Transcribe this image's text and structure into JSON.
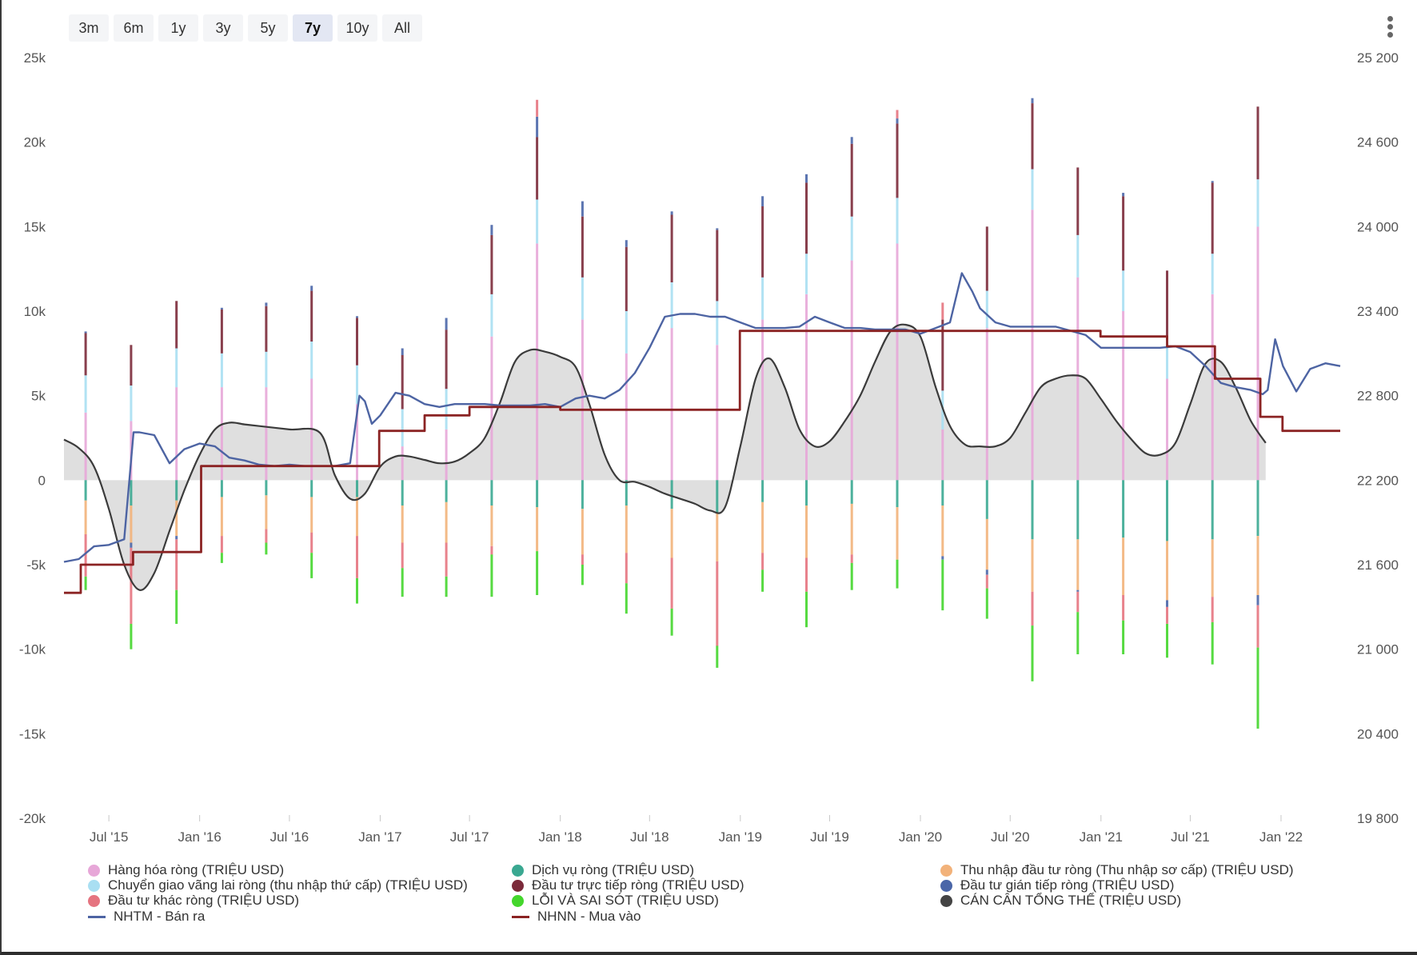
{
  "range_selector": {
    "buttons": [
      "3m",
      "6m",
      "1y",
      "3y",
      "5y",
      "7y",
      "10y",
      "All"
    ],
    "selected": "7y"
  },
  "menu": {
    "icon": "kebab-menu-icon"
  },
  "chart_data": {
    "type": "bar",
    "x_axis": {
      "ticks": [
        "Jul '15",
        "Jan '16",
        "Jul '16",
        "Jan '17",
        "Jul '17",
        "Jan '18",
        "Jul '18",
        "Jan '19",
        "Jul '19",
        "Jan '20",
        "Jul '20",
        "Jan '21",
        "Jul '21",
        "Jan '22"
      ]
    },
    "y_left": {
      "ticks": [
        "25k",
        "20k",
        "15k",
        "10k",
        "5k",
        "0",
        "-5k",
        "-10k",
        "-15k",
        "-20k"
      ],
      "range": [
        -20000,
        25000
      ]
    },
    "y_right": {
      "ticks": [
        "25 200",
        "24 600",
        "24 000",
        "23 400",
        "22 800",
        "22 200",
        "21 600",
        "21 000",
        "20 400",
        "19 800"
      ],
      "range": [
        19800,
        25200
      ]
    },
    "quarters": [
      "2015 Q2",
      "2015 Q3",
      "2015 Q4",
      "2016 Q1",
      "2016 Q2",
      "2016 Q3",
      "2016 Q4",
      "2017 Q1",
      "2017 Q2",
      "2017 Q3",
      "2017 Q4",
      "2018 Q1",
      "2018 Q2",
      "2018 Q3",
      "2018 Q4",
      "2019 Q1",
      "2019 Q2",
      "2019 Q3",
      "2019 Q4",
      "2020 Q1",
      "2020 Q2",
      "2020 Q3",
      "2020 Q4",
      "2021 Q1",
      "2021 Q2",
      "2021 Q3",
      "2021 Q4"
    ],
    "quarter_dates": [
      "2015-05-15",
      "2015-08-15",
      "2015-11-15",
      "2016-02-15",
      "2016-05-15",
      "2016-08-15",
      "2016-11-15",
      "2017-02-15",
      "2017-05-15",
      "2017-08-15",
      "2017-11-15",
      "2018-02-15",
      "2018-05-15",
      "2018-08-15",
      "2018-11-15",
      "2019-02-15",
      "2019-05-15",
      "2019-08-15",
      "2019-11-15",
      "2020-02-15",
      "2020-05-15",
      "2020-08-15",
      "2020-11-15",
      "2021-02-15",
      "2021-05-15",
      "2021-08-15",
      "2021-11-15"
    ],
    "stack_series": [
      {
        "name": "Hàng hóa ròng (TRIỆU USD)",
        "color": "#e7a7d8",
        "axis": "left",
        "values": [
          4000,
          3500,
          5500,
          5500,
          5500,
          6000,
          4500,
          2000,
          3000,
          8500,
          14000,
          9500,
          7500,
          9000,
          8000,
          9500,
          11000,
          13000,
          14000,
          3000,
          9000,
          16000,
          12000,
          10000,
          6000,
          11000,
          15000
        ]
      },
      {
        "name": "Dịch vụ ròng (TRIỆU USD)",
        "color": "#3aa891",
        "axis": "left",
        "values": [
          -1200,
          -1500,
          -1200,
          -1000,
          -900,
          -1000,
          -1000,
          -1500,
          -1300,
          -1500,
          -1600,
          -1700,
          -1500,
          -1700,
          -1900,
          -1300,
          -1500,
          -1400,
          -1600,
          -1500,
          -2300,
          -3500,
          -3500,
          -3400,
          -3600,
          -3500,
          -3300
        ]
      },
      {
        "name": "Thu nhập đầu tư ròng (Thu nhập sơ cấp) (TRIỆU USD)",
        "color": "#f2b27a",
        "axis": "left",
        "values": [
          -2000,
          -2200,
          -2100,
          -2300,
          -2000,
          -2100,
          -2300,
          -2200,
          -2400,
          -2400,
          -2600,
          -2700,
          -2800,
          -2900,
          -2900,
          -3000,
          -3100,
          -3000,
          -3100,
          -3000,
          -3000,
          -3100,
          -3000,
          -3400,
          -3500,
          -3400,
          -3500
        ]
      },
      {
        "name": "Chuyển giao vãng lai ròng (thu nhập thứ cấp) (TRIỆU USD)",
        "color": "#a9dff2",
        "axis": "left",
        "values": [
          2200,
          2100,
          2300,
          2000,
          2100,
          2200,
          2300,
          2200,
          2400,
          2500,
          2600,
          2500,
          2500,
          2700,
          2600,
          2500,
          2400,
          2600,
          2700,
          2300,
          2200,
          2400,
          2500,
          2400,
          2300,
          2400,
          2800
        ]
      },
      {
        "name": "Đầu tư trực tiếp ròng (TRIỆU USD)",
        "color": "#7b2a3a",
        "axis": "left",
        "values": [
          2500,
          2400,
          2800,
          2600,
          2700,
          3000,
          2800,
          3200,
          3500,
          3500,
          3700,
          3600,
          3800,
          4000,
          4200,
          4200,
          4200,
          4300,
          4400,
          4200,
          3800,
          3900,
          4000,
          4400,
          4100,
          4200,
          4300
        ]
      },
      {
        "name": "Đầu tư gián tiếp ròng (TRIỆU USD)",
        "color": "#4a66a8",
        "axis": "left",
        "values": [
          100,
          -300,
          -200,
          100,
          200,
          300,
          100,
          400,
          700,
          600,
          1200,
          900,
          400,
          200,
          100,
          600,
          500,
          400,
          300,
          -200,
          -300,
          300,
          -100,
          200,
          -400,
          100,
          -600
        ]
      },
      {
        "name": "Đầu tư khác ròng (TRIỆU USD)",
        "color": "#e57480",
        "axis": "left",
        "values": [
          -2500,
          -4500,
          -3000,
          -1000,
          -800,
          -1200,
          -2500,
          -1500,
          -2000,
          -500,
          1000,
          -600,
          -1800,
          -3000,
          -5000,
          -1000,
          -2000,
          -500,
          500,
          1000,
          -800,
          -2000,
          -1200,
          -1500,
          -1000,
          -1500,
          -2500
        ]
      },
      {
        "name": "LỖI VÀ SAI SÓT (TRIỆU USD)",
        "color": "#44d62c",
        "axis": "left",
        "values": [
          -800,
          -1500,
          -2000,
          -600,
          -700,
          -1500,
          -1500,
          -1700,
          -1200,
          -2500,
          -2600,
          -1200,
          -1800,
          -1600,
          -1300,
          -1300,
          -2100,
          -1600,
          -1700,
          -3000,
          -1800,
          -3300,
          -2500,
          -2000,
          -2000,
          -2500,
          -4800
        ]
      }
    ],
    "balance_series": {
      "name": "CÁN CÂN TỔNG THỂ (TRIỆU USD)",
      "color": "#444444",
      "axis": "left",
      "x": [
        "2015-04-01",
        "2015-05-01",
        "2015-06-01",
        "2015-07-01",
        "2015-08-01",
        "2015-09-01",
        "2015-10-01",
        "2015-11-01",
        "2015-12-01",
        "2016-01-01",
        "2016-02-01",
        "2016-03-01",
        "2016-04-01",
        "2016-05-01",
        "2016-07-01",
        "2016-09-01",
        "2016-10-01",
        "2016-11-01",
        "2016-12-01",
        "2017-01-01",
        "2017-02-01",
        "2017-03-01",
        "2017-04-01",
        "2017-05-01",
        "2017-06-01",
        "2017-07-01",
        "2017-08-01",
        "2017-09-01",
        "2017-10-01",
        "2017-11-01",
        "2017-12-01",
        "2018-01-01",
        "2018-02-01",
        "2018-03-01",
        "2018-04-01",
        "2018-05-01",
        "2018-06-01",
        "2018-07-01",
        "2018-08-01",
        "2018-09-01",
        "2018-10-01",
        "2018-11-01",
        "2018-12-01",
        "2019-01-01",
        "2019-02-01",
        "2019-03-01",
        "2019-04-01",
        "2019-05-01",
        "2019-06-01",
        "2019-07-01",
        "2019-08-01",
        "2019-09-01",
        "2019-10-01",
        "2019-11-01",
        "2019-12-01",
        "2020-01-01",
        "2020-02-01",
        "2020-03-01",
        "2020-04-01",
        "2020-05-01",
        "2020-06-01",
        "2020-07-01",
        "2020-08-01",
        "2020-09-01",
        "2020-10-01",
        "2020-11-01",
        "2020-12-01",
        "2021-01-01",
        "2021-02-01",
        "2021-03-01",
        "2021-04-01",
        "2021-05-01",
        "2021-06-01",
        "2021-07-01",
        "2021-08-01",
        "2021-09-01",
        "2021-10-01",
        "2021-11-01",
        "2021-12-01"
      ],
      "y": [
        2400,
        1900,
        800,
        -1700,
        -5000,
        -6500,
        -5500,
        -3000,
        -600,
        1500,
        3000,
        3400,
        3300,
        3200,
        3000,
        2800,
        300,
        -1100,
        -800,
        800,
        1400,
        1400,
        1200,
        1000,
        1100,
        1600,
        2500,
        4600,
        7000,
        7700,
        7600,
        7300,
        6700,
        4500,
        1500,
        0,
        -100,
        -400,
        -800,
        -1100,
        -1400,
        -1800,
        -1600,
        2000,
        6000,
        7200,
        5500,
        3000,
        2000,
        2300,
        3500,
        5000,
        7000,
        8800,
        9200,
        8500,
        5500,
        3200,
        2100,
        2000,
        2000,
        2500,
        4000,
        5500,
        6000,
        6200,
        6000,
        4800,
        3500,
        2500,
        1600,
        1500,
        2200,
        4500,
        6900,
        7000,
        5500,
        3500,
        2200
      ]
    },
    "line_series": [
      {
        "name": "NHTM - Bán ra",
        "color": "#4d64a3",
        "axis": "right",
        "x": [
          "2015-04-01",
          "2015-05-01",
          "2015-06-01",
          "2015-07-01",
          "2015-08-01",
          "2015-08-20",
          "2015-09-01",
          "2015-10-01",
          "2015-11-01",
          "2015-12-01",
          "2016-01-01",
          "2016-02-01",
          "2016-03-01",
          "2016-04-01",
          "2016-05-01",
          "2016-06-01",
          "2016-07-01",
          "2016-08-01",
          "2016-09-01",
          "2016-10-01",
          "2016-11-01",
          "2016-11-20",
          "2016-12-01",
          "2016-12-15",
          "2017-01-01",
          "2017-02-01",
          "2017-03-01",
          "2017-04-01",
          "2017-05-01",
          "2017-06-01",
          "2017-07-01",
          "2017-08-01",
          "2017-09-01",
          "2017-10-01",
          "2017-11-01",
          "2017-12-01",
          "2018-01-01",
          "2018-02-01",
          "2018-03-01",
          "2018-04-01",
          "2018-05-01",
          "2018-06-01",
          "2018-07-01",
          "2018-08-01",
          "2018-09-01",
          "2018-10-01",
          "2018-11-01",
          "2018-12-01",
          "2019-01-01",
          "2019-02-01",
          "2019-03-01",
          "2019-04-01",
          "2019-05-01",
          "2019-06-01",
          "2019-07-01",
          "2019-08-01",
          "2019-09-01",
          "2019-10-01",
          "2019-11-01",
          "2019-12-01",
          "2020-01-01",
          "2020-02-01",
          "2020-03-01",
          "2020-03-25",
          "2020-04-15",
          "2020-05-01",
          "2020-06-01",
          "2020-07-01",
          "2020-08-01",
          "2020-09-01",
          "2020-10-01",
          "2020-11-01",
          "2020-12-01",
          "2021-01-01",
          "2021-02-01",
          "2021-03-01",
          "2021-04-01",
          "2021-05-01",
          "2021-06-01",
          "2021-07-01",
          "2021-08-01",
          "2021-09-01",
          "2021-10-01",
          "2021-11-01",
          "2021-11-25",
          "2021-12-05",
          "2021-12-20",
          "2022-01-05",
          "2022-02-01",
          "2022-03-01",
          "2022-04-01",
          "2022-05-01"
        ],
        "y": [
          21620,
          21640,
          21730,
          21740,
          21780,
          22540,
          22540,
          22520,
          22320,
          22420,
          22460,
          22440,
          22360,
          22340,
          22310,
          22300,
          22310,
          22300,
          22300,
          22300,
          22320,
          22800,
          22760,
          22600,
          22660,
          22820,
          22800,
          22740,
          22720,
          22740,
          22740,
          22740,
          22730,
          22730,
          22730,
          22740,
          22720,
          22780,
          22800,
          22780,
          22840,
          22960,
          23140,
          23360,
          23380,
          23380,
          23360,
          23360,
          23320,
          23280,
          23280,
          23280,
          23290,
          23360,
          23320,
          23280,
          23280,
          23270,
          23270,
          23270,
          23240,
          23280,
          23320,
          23670,
          23540,
          23420,
          23320,
          23290,
          23290,
          23290,
          23290,
          23260,
          23230,
          23140,
          23140,
          23140,
          23140,
          23140,
          23150,
          23110,
          23010,
          22890,
          22860,
          22840,
          22810,
          22840,
          23200,
          23010,
          22830,
          22990,
          23030,
          23010
        ]
      },
      {
        "name": "NHNN - Mua vào",
        "color": "#8b2323",
        "axis": "right",
        "x": [
          "2015-04-01",
          "2015-05-05",
          "2015-05-05",
          "2015-08-19",
          "2015-08-19",
          "2016-01-04",
          "2016-01-04",
          "2016-12-30",
          "2016-12-30",
          "2017-04-01",
          "2017-04-01",
          "2017-07-01",
          "2017-07-01",
          "2018-01-01",
          "2018-01-01",
          "2018-12-31",
          "2018-12-31",
          "2020-12-31",
          "2020-12-31",
          "2021-05-15",
          "2021-05-15",
          "2021-08-20",
          "2021-08-20",
          "2021-11-20",
          "2021-11-20",
          "2022-01-04",
          "2022-01-04",
          "2022-05-01"
        ],
        "y": [
          21400,
          21400,
          21600,
          21600,
          21690,
          21690,
          22300,
          22300,
          22550,
          22550,
          22660,
          22660,
          22720,
          22720,
          22700,
          22700,
          23260,
          23260,
          23220,
          23220,
          23150,
          23150,
          22920,
          22920,
          22650,
          22650,
          22550,
          22550
        ]
      }
    ]
  },
  "legend": [
    {
      "label": "Hàng hóa ròng (TRIỆU USD)",
      "marker": "dot",
      "color": "#e7a7d8"
    },
    {
      "label": "Dịch vụ ròng (TRIỆU USD)",
      "marker": "dot",
      "color": "#3aa891"
    },
    {
      "label": "Thu nhập đầu tư ròng (Thu nhập sơ cấp) (TRIỆU USD)",
      "marker": "dot",
      "color": "#f2b27a"
    },
    {
      "label": "Chuyển giao vãng lai ròng (thu nhập thứ cấp) (TRIỆU USD)",
      "marker": "dot",
      "color": "#a9dff2"
    },
    {
      "label": "Đầu tư trực tiếp ròng (TRIỆU USD)",
      "marker": "dot",
      "color": "#7b2a3a"
    },
    {
      "label": "Đầu tư gián tiếp ròng (TRIỆU USD)",
      "marker": "dot",
      "color": "#4a66a8"
    },
    {
      "label": "Đầu tư khác ròng (TRIỆU USD)",
      "marker": "dot",
      "color": "#e57480"
    },
    {
      "label": "LỖI VÀ SAI SÓT (TRIỆU USD)",
      "marker": "dot",
      "color": "#44d62c"
    },
    {
      "label": "CÁN CÂN TỔNG THỂ (TRIỆU USD)",
      "marker": "dot",
      "color": "#444444"
    },
    {
      "label": "NHTM - Bán ra",
      "marker": "line",
      "color": "#4d64a3"
    },
    {
      "label": "NHNN - Mua vào",
      "marker": "line",
      "color": "#8b2323"
    }
  ]
}
